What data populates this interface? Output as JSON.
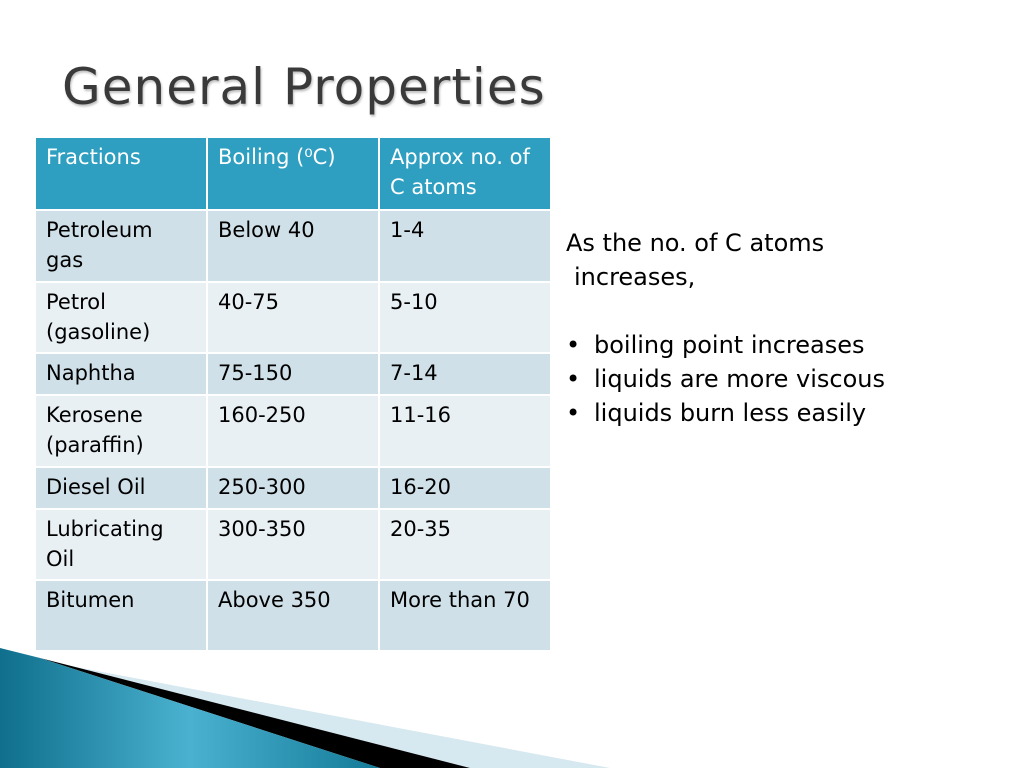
{
  "title": "General Properties",
  "table": {
    "headers": [
      "Fractions",
      "Boiling (⁰C)",
      "Approx no. of C atoms"
    ],
    "rows": [
      [
        "Petroleum gas",
        "Below 40",
        "1-4"
      ],
      [
        "Petrol (gasoline)",
        "40-75",
        "5-10"
      ],
      [
        "Naphtha",
        "75-150",
        "7-14"
      ],
      [
        "Kerosene (paraffin)",
        "160-250",
        "11-16"
      ],
      [
        "Diesel Oil",
        "250-300",
        "16-20"
      ],
      [
        "Lubricating Oil",
        "300-350",
        "20-35"
      ],
      [
        "Bitumen",
        "Above 350",
        "More than 70"
      ]
    ]
  },
  "side": {
    "intro": "As the no. of C atoms",
    "intro2": "increases,",
    "bullets": [
      "boiling point increases",
      "liquids are more viscous",
      "liquids burn less easily"
    ]
  },
  "colors": {
    "header": "#2e9fc0",
    "row_dark": "#cfe0e8",
    "row_light": "#e8f0f4"
  }
}
